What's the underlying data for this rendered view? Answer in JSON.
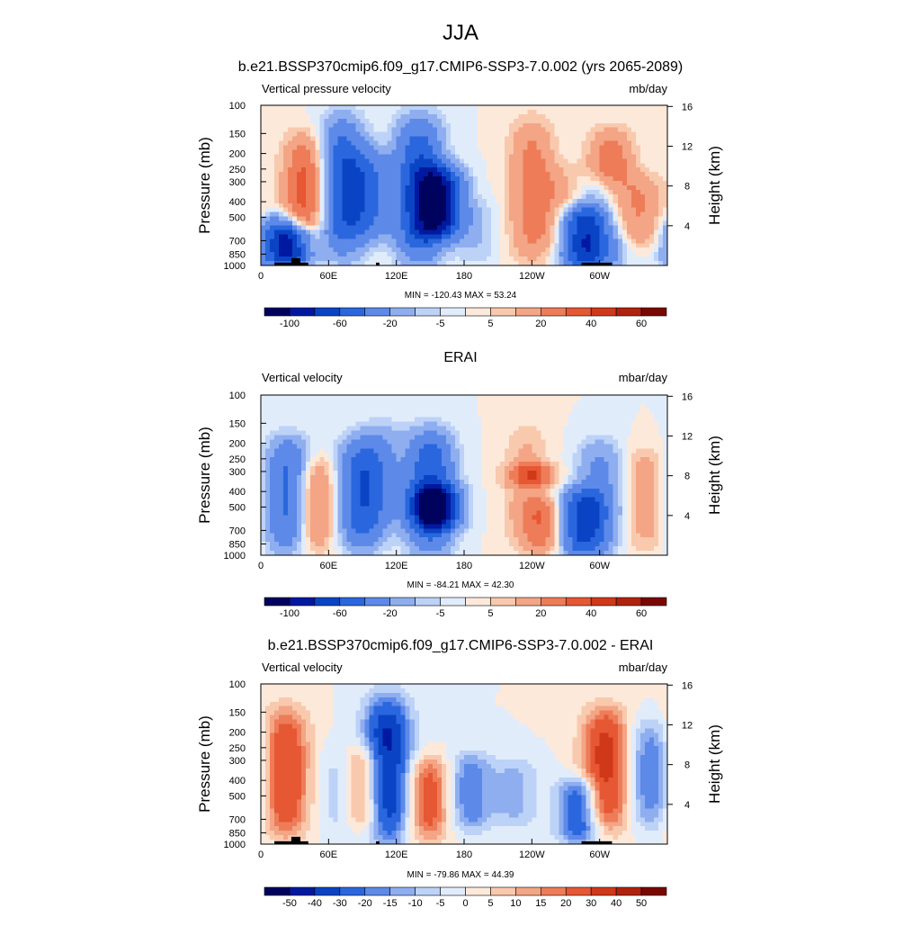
{
  "figure": {
    "title": "JJA"
  },
  "chart_data": [
    {
      "type": "heatmap",
      "title": "b.e21.BSSP370cmip6.f09_g17.CMIP6-SSP3-7.0.002 (yrs 2065-2089)",
      "variable": "Vertical pressure velocity",
      "units": "mb/day",
      "ylabel": "Pressure (mb)",
      "ylabel_right": "Height (km)",
      "x_ticks": [
        "0",
        "60E",
        "120E",
        "180",
        "120W",
        "60W"
      ],
      "x_tick_values": [
        0,
        60,
        120,
        180,
        240,
        300
      ],
      "xlim": [
        0,
        360
      ],
      "y_ticks": [
        "100",
        "150",
        "200",
        "250",
        "300",
        "400",
        "500",
        "700",
        "850",
        "1000"
      ],
      "y_tick_values": [
        100,
        150,
        200,
        250,
        300,
        400,
        500,
        700,
        850,
        1000
      ],
      "ylim": [
        1000,
        100
      ],
      "height_ticks": [
        "4",
        "8",
        "12",
        "16"
      ],
      "height_tick_values": [
        4,
        8,
        12,
        16
      ],
      "stats": "MIN = -120.43  MAX =  53.24",
      "min": -120.43,
      "max": 53.24,
      "colorbar_levels": [
        -120,
        -100,
        -80,
        -60,
        -40,
        -20,
        -10,
        -5,
        0,
        5,
        10,
        20,
        30,
        40,
        50,
        60,
        70
      ],
      "colorbar_labels": [
        "-100",
        "-60",
        "-20",
        "-5",
        "5",
        "20",
        "40",
        "60"
      ],
      "colorbar_label_indices": [
        1,
        3,
        5,
        7,
        9,
        11,
        13,
        15
      ],
      "features": [
        {
          "lon": 40,
          "p_top": 160,
          "p_bot": 850,
          "value": 35
        },
        {
          "lon": 18,
          "p_top": 500,
          "p_bot": 1000,
          "value": -45
        },
        {
          "lon": 28,
          "p_top": 600,
          "p_bot": 950,
          "value": -60
        },
        {
          "lon": 72,
          "p_top": 130,
          "p_bot": 820,
          "value": -55
        },
        {
          "lon": 95,
          "p_top": 200,
          "p_bot": 650,
          "value": -40
        },
        {
          "lon": 140,
          "p_top": 130,
          "p_bot": 900,
          "value": -60
        },
        {
          "lon": 158,
          "p_top": 250,
          "p_bot": 650,
          "value": -90
        },
        {
          "lon": 190,
          "p_top": 400,
          "p_bot": 950,
          "value": -10
        },
        {
          "lon": 240,
          "p_top": 130,
          "p_bot": 900,
          "value": 25
        },
        {
          "lon": 265,
          "p_top": 250,
          "p_bot": 800,
          "value": 12
        },
        {
          "lon": 285,
          "p_top": 450,
          "p_bot": 1000,
          "value": -70
        },
        {
          "lon": 303,
          "p_top": 300,
          "p_bot": 950,
          "value": -35
        },
        {
          "lon": 310,
          "p_top": 150,
          "p_bot": 650,
          "value": 30
        },
        {
          "lon": 338,
          "p_top": 280,
          "p_bot": 750,
          "value": 18
        }
      ]
    },
    {
      "type": "heatmap",
      "title": "ERAI",
      "variable": "Vertical velocity",
      "units": "mbar/day",
      "ylabel": "Pressure (mb)",
      "ylabel_right": "Height (km)",
      "x_ticks": [
        "0",
        "60E",
        "120E",
        "180",
        "120W",
        "60W"
      ],
      "x_tick_values": [
        0,
        60,
        120,
        180,
        240,
        300
      ],
      "xlim": [
        0,
        360
      ],
      "y_ticks": [
        "100",
        "150",
        "200",
        "250",
        "300",
        "400",
        "500",
        "700",
        "850",
        "1000"
      ],
      "y_tick_values": [
        100,
        150,
        200,
        250,
        300,
        400,
        500,
        700,
        850,
        1000
      ],
      "ylim": [
        1000,
        100
      ],
      "height_ticks": [
        "4",
        "8",
        "12",
        "16"
      ],
      "height_tick_values": [
        4,
        8,
        12,
        16
      ],
      "stats": "MIN = -84.21  MAX =  42.30",
      "min": -84.21,
      "max": 42.3,
      "colorbar_levels": [
        -120,
        -100,
        -80,
        -60,
        -40,
        -20,
        -10,
        -5,
        0,
        5,
        10,
        20,
        30,
        40,
        50,
        60,
        70
      ],
      "colorbar_labels": [
        "-100",
        "-60",
        "-20",
        "-5",
        "5",
        "20",
        "40",
        "60"
      ],
      "colorbar_label_indices": [
        1,
        3,
        5,
        7,
        9,
        11,
        13,
        15
      ],
      "features": [
        {
          "lon": 25,
          "p_top": 200,
          "p_bot": 900,
          "value": -50
        },
        {
          "lon": 45,
          "p_top": 250,
          "p_bot": 900,
          "value": 30
        },
        {
          "lon": 90,
          "p_top": 200,
          "p_bot": 850,
          "value": -55
        },
        {
          "lon": 108,
          "p_top": 150,
          "p_bot": 600,
          "value": -15
        },
        {
          "lon": 150,
          "p_top": 180,
          "p_bot": 900,
          "value": -60
        },
        {
          "lon": 155,
          "p_top": 380,
          "p_bot": 650,
          "value": -85
        },
        {
          "lon": 235,
          "p_top": 160,
          "p_bot": 800,
          "value": 12
        },
        {
          "lon": 240,
          "p_top": 280,
          "p_bot": 360,
          "value": 30
        },
        {
          "lon": 250,
          "p_top": 450,
          "p_bot": 950,
          "value": 25
        },
        {
          "lon": 285,
          "p_top": 400,
          "p_bot": 1000,
          "value": -60
        },
        {
          "lon": 300,
          "p_top": 200,
          "p_bot": 850,
          "value": -25
        },
        {
          "lon": 340,
          "p_top": 220,
          "p_bot": 900,
          "value": 15
        }
      ]
    },
    {
      "type": "heatmap",
      "title": "b.e21.BSSP370cmip6.f09_g17.CMIP6-SSP3-7.0.002 - ERAI",
      "variable": "Vertical velocity",
      "units": "mbar/day",
      "ylabel": "Pressure (mb)",
      "ylabel_right": "Height (km)",
      "x_ticks": [
        "0",
        "60E",
        "120E",
        "180",
        "120W",
        "60W"
      ],
      "x_tick_values": [
        0,
        60,
        120,
        180,
        240,
        300
      ],
      "xlim": [
        0,
        360
      ],
      "y_ticks": [
        "100",
        "150",
        "200",
        "250",
        "300",
        "400",
        "500",
        "700",
        "850",
        "1000"
      ],
      "y_tick_values": [
        100,
        150,
        200,
        250,
        300,
        400,
        500,
        700,
        850,
        1000
      ],
      "ylim": [
        1000,
        100
      ],
      "height_ticks": [
        "4",
        "8",
        "12",
        "16"
      ],
      "height_tick_values": [
        4,
        8,
        12,
        16
      ],
      "stats": "MIN = -79.86  MAX =  44.39",
      "min": -79.86,
      "max": 44.39,
      "colorbar_levels": [
        -60,
        -50,
        -40,
        -30,
        -20,
        -15,
        -10,
        -5,
        0,
        5,
        10,
        15,
        20,
        30,
        40,
        50,
        60
      ],
      "colorbar_labels": [
        "-50",
        "-40",
        "-30",
        "-20",
        "-15",
        "-10",
        "-5",
        "0",
        "5",
        "10",
        "15",
        "20",
        "30",
        "40",
        "50"
      ],
      "colorbar_label_indices": [
        1,
        2,
        3,
        4,
        5,
        6,
        7,
        8,
        9,
        10,
        11,
        12,
        13,
        14,
        15
      ],
      "features": [
        {
          "lon": 22,
          "p_top": 150,
          "p_bot": 850,
          "value": 30
        },
        {
          "lon": 75,
          "p_top": 250,
          "p_bot": 850,
          "value": -15
        },
        {
          "lon": 90,
          "p_top": 250,
          "p_bot": 800,
          "value": 30
        },
        {
          "lon": 112,
          "p_top": 130,
          "p_bot": 900,
          "value": -45
        },
        {
          "lon": 148,
          "p_top": 300,
          "p_bot": 900,
          "value": 25
        },
        {
          "lon": 185,
          "p_top": 280,
          "p_bot": 800,
          "value": -20
        },
        {
          "lon": 225,
          "p_top": 300,
          "p_bot": 750,
          "value": -12
        },
        {
          "lon": 283,
          "p_top": 400,
          "p_bot": 950,
          "value": -30
        },
        {
          "lon": 305,
          "p_top": 150,
          "p_bot": 800,
          "value": 35
        },
        {
          "lon": 345,
          "p_top": 180,
          "p_bot": 750,
          "value": -20
        }
      ]
    }
  ],
  "colors": {
    "palette": [
      "#00035e",
      "#0019a0",
      "#0a44c4",
      "#2a67de",
      "#5d8ae8",
      "#8eaef0",
      "#bdd2f7",
      "#e1ecfb",
      "#fde9da",
      "#f9c9ae",
      "#f3a585",
      "#ee7c58",
      "#e65733",
      "#d0381a",
      "#b0220d",
      "#7a0800"
    ],
    "terrain": "#000000"
  }
}
